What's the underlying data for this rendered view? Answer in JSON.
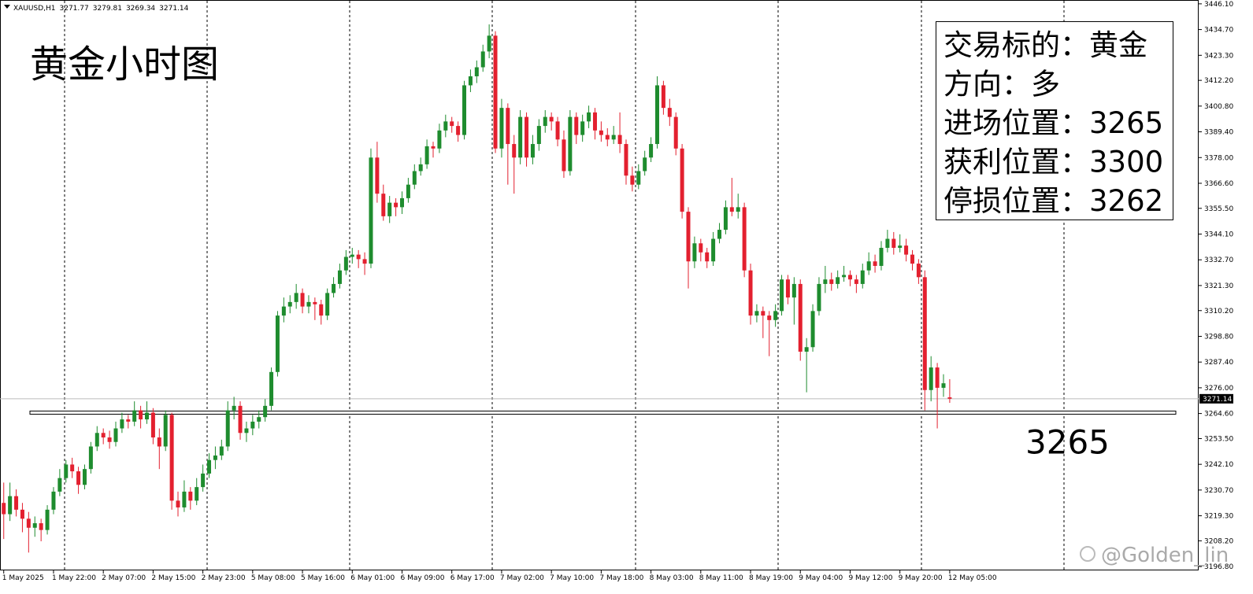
{
  "chart_data": {
    "type": "candlestick",
    "symbol": "XAUUSD,H1",
    "title": "黄金小时图",
    "info_box": [
      "交易标的：黄金",
      "方向：多",
      "进场位置：3265",
      "获利位置：3300",
      "停损位置：3262"
    ],
    "hline": {
      "value": 3265,
      "label": "3265"
    },
    "watermark": "@Golden_lin",
    "up_color": "#1e8c2e",
    "down_color": "#e3202f",
    "xlim": [
      -0.6,
      192
    ],
    "ylim": [
      3195.1,
      3447.8
    ],
    "xticks": [
      {
        "value": 0,
        "label": "1 May 2025"
      },
      {
        "value": 8,
        "label": "1 May 22:00"
      },
      {
        "value": 16,
        "label": "2 May 07:00"
      },
      {
        "value": 24,
        "label": "2 May 15:00"
      },
      {
        "value": 32,
        "label": "2 May 23:00"
      },
      {
        "value": 40,
        "label": "5 May 08:00"
      },
      {
        "value": 48,
        "label": "5 May 16:00"
      },
      {
        "value": 56,
        "label": "6 May 01:00"
      },
      {
        "value": 64,
        "label": "6 May 09:00"
      },
      {
        "value": 72,
        "label": "6 May 17:00"
      },
      {
        "value": 80,
        "label": "7 May 02:00"
      },
      {
        "value": 88,
        "label": "7 May 10:00"
      },
      {
        "value": 96,
        "label": "7 May 18:00"
      },
      {
        "value": 104,
        "label": "8 May 03:00"
      },
      {
        "value": 112,
        "label": "8 May 11:00"
      },
      {
        "value": 120,
        "label": "8 May 19:00"
      },
      {
        "value": 128,
        "label": "9 May 04:00"
      },
      {
        "value": 136,
        "label": "9 May 12:00"
      },
      {
        "value": 144,
        "label": "9 May 20:00"
      },
      {
        "value": 152,
        "label": "12 May 05:00"
      }
    ],
    "yticks": [
      {
        "value": 3446.1,
        "label": "3446.10"
      },
      {
        "value": 3434.7,
        "label": "3434.70"
      },
      {
        "value": 3423.3,
        "label": "3423.30"
      },
      {
        "value": 3412.2,
        "label": "3412.20"
      },
      {
        "value": 3400.8,
        "label": "3400.80"
      },
      {
        "value": 3389.4,
        "label": "3389.40"
      },
      {
        "value": 3378.0,
        "label": "3378.00"
      },
      {
        "value": 3366.6,
        "label": "3366.60"
      },
      {
        "value": 3355.5,
        "label": "3355.50"
      },
      {
        "value": 3344.1,
        "label": "3344.10"
      },
      {
        "value": 3332.7,
        "label": "3332.70"
      },
      {
        "value": 3321.3,
        "label": "3321.30"
      },
      {
        "value": 3310.2,
        "label": "3310.20"
      },
      {
        "value": 3298.8,
        "label": "3298.80"
      },
      {
        "value": 3287.4,
        "label": "3287.40"
      },
      {
        "value": 3276.0,
        "label": "3276.00"
      },
      {
        "value": 3264.6,
        "label": "3264.60"
      },
      {
        "value": 3253.5,
        "label": "3253.50"
      },
      {
        "value": 3242.1,
        "label": "3242.10"
      },
      {
        "value": 3230.7,
        "label": "3230.70"
      },
      {
        "value": 3219.3,
        "label": "3219.30"
      },
      {
        "value": 3208.2,
        "label": "3208.20"
      },
      {
        "value": 3196.8,
        "label": "3196.80"
      }
    ],
    "candles": [
      [
        3225,
        3234,
        3209,
        3220
      ],
      [
        3220,
        3234,
        3217,
        3228
      ],
      [
        3228,
        3231,
        3219,
        3222
      ],
      [
        3222,
        3225,
        3212,
        3218
      ],
      [
        3218,
        3221,
        3203,
        3214
      ],
      [
        3214,
        3219,
        3210,
        3216
      ],
      [
        3216,
        3218,
        3208,
        3213
      ],
      [
        3213,
        3224,
        3211,
        3222
      ],
      [
        3222,
        3232,
        3220,
        3230
      ],
      [
        3230,
        3240,
        3228,
        3236
      ],
      [
        3236,
        3244,
        3234,
        3242
      ],
      [
        3242,
        3245,
        3236,
        3239
      ],
      [
        3239,
        3241,
        3229,
        3233
      ],
      [
        3233,
        3242,
        3231,
        3240
      ],
      [
        3240,
        3252,
        3238,
        3250
      ],
      [
        3250,
        3259,
        3248,
        3256
      ],
      [
        3256,
        3258,
        3251,
        3254
      ],
      [
        3254,
        3257,
        3249,
        3252
      ],
      [
        3252,
        3261,
        3250,
        3258
      ],
      [
        3258,
        3265,
        3256,
        3262
      ],
      [
        3262,
        3264,
        3258,
        3261
      ],
      [
        3261,
        3270,
        3259,
        3266
      ],
      [
        3266,
        3268,
        3258,
        3262
      ],
      [
        3262,
        3270,
        3260,
        3265
      ],
      [
        3265,
        3267,
        3251,
        3254
      ],
      [
        3254,
        3258,
        3240,
        3250
      ],
      [
        3250,
        3266,
        3248,
        3264
      ],
      [
        3264,
        3265,
        3222,
        3226
      ],
      [
        3226,
        3230,
        3219,
        3223
      ],
      [
        3223,
        3235,
        3221,
        3230
      ],
      [
        3230,
        3232,
        3222,
        3226
      ],
      [
        3226,
        3236,
        3224,
        3232
      ],
      [
        3232,
        3242,
        3230,
        3238
      ],
      [
        3238,
        3247,
        3236,
        3244
      ],
      [
        3244,
        3250,
        3240,
        3246
      ],
      [
        3246,
        3253,
        3244,
        3250
      ],
      [
        3250,
        3270,
        3248,
        3266
      ],
      [
        3266,
        3272,
        3262,
        3268
      ],
      [
        3268,
        3270,
        3253,
        3256
      ],
      [
        3256,
        3261,
        3252,
        3258
      ],
      [
        3258,
        3264,
        3255,
        3261
      ],
      [
        3261,
        3266,
        3258,
        3263
      ],
      [
        3263,
        3271,
        3261,
        3268
      ],
      [
        3268,
        3285,
        3266,
        3283
      ],
      [
        3283,
        3310,
        3281,
        3308
      ],
      [
        3308,
        3316,
        3305,
        3312
      ],
      [
        3312,
        3317,
        3309,
        3314
      ],
      [
        3314,
        3322,
        3311,
        3318
      ],
      [
        3318,
        3320,
        3309,
        3312
      ],
      [
        3312,
        3317,
        3309,
        3314
      ],
      [
        3314,
        3316,
        3306,
        3313
      ],
      [
        3313,
        3315,
        3304,
        3308
      ],
      [
        3308,
        3320,
        3306,
        3318
      ],
      [
        3318,
        3325,
        3316,
        3322
      ],
      [
        3322,
        3331,
        3320,
        3328
      ],
      [
        3328,
        3337,
        3326,
        3334
      ],
      [
        3334,
        3338,
        3331,
        3335
      ],
      [
        3335,
        3337,
        3329,
        3333
      ],
      [
        3333,
        3336,
        3326,
        3331
      ],
      [
        3331,
        3382,
        3329,
        3378
      ],
      [
        3378,
        3385,
        3358,
        3362
      ],
      [
        3362,
        3366,
        3350,
        3352
      ],
      [
        3352,
        3361,
        3349,
        3358
      ],
      [
        3358,
        3360,
        3352,
        3356
      ],
      [
        3356,
        3363,
        3353,
        3360
      ],
      [
        3360,
        3369,
        3358,
        3366
      ],
      [
        3366,
        3375,
        3364,
        3372
      ],
      [
        3372,
        3378,
        3370,
        3375
      ],
      [
        3375,
        3386,
        3373,
        3383
      ],
      [
        3383,
        3385,
        3378,
        3382
      ],
      [
        3382,
        3393,
        3380,
        3390
      ],
      [
        3390,
        3397,
        3387,
        3394
      ],
      [
        3394,
        3396,
        3389,
        3392
      ],
      [
        3392,
        3394,
        3385,
        3388
      ],
      [
        3388,
        3412,
        3386,
        3410
      ],
      [
        3410,
        3417,
        3407,
        3414
      ],
      [
        3414,
        3421,
        3411,
        3418
      ],
      [
        3418,
        3428,
        3416,
        3425
      ],
      [
        3425,
        3437,
        3422,
        3432
      ],
      [
        3432,
        3434,
        3380,
        3382
      ],
      [
        3382,
        3404,
        3378,
        3400
      ],
      [
        3400,
        3402,
        3366,
        3384
      ],
      [
        3384,
        3388,
        3362,
        3378
      ],
      [
        3378,
        3399,
        3375,
        3396
      ],
      [
        3396,
        3398,
        3374,
        3378
      ],
      [
        3378,
        3388,
        3375,
        3384
      ],
      [
        3384,
        3395,
        3381,
        3392
      ],
      [
        3392,
        3399,
        3389,
        3396
      ],
      [
        3396,
        3398,
        3390,
        3394
      ],
      [
        3394,
        3396,
        3383,
        3386
      ],
      [
        3386,
        3390,
        3369,
        3372
      ],
      [
        3372,
        3399,
        3370,
        3396
      ],
      [
        3396,
        3398,
        3384,
        3388
      ],
      [
        3388,
        3397,
        3385,
        3394
      ],
      [
        3394,
        3401,
        3391,
        3398
      ],
      [
        3398,
        3400,
        3386,
        3390
      ],
      [
        3390,
        3394,
        3385,
        3388
      ],
      [
        3388,
        3391,
        3383,
        3386
      ],
      [
        3386,
        3392,
        3384,
        3388
      ],
      [
        3388,
        3398,
        3380,
        3384
      ],
      [
        3384,
        3386,
        3366,
        3370
      ],
      [
        3370,
        3374,
        3363,
        3366
      ],
      [
        3366,
        3375,
        3364,
        3372
      ],
      [
        3372,
        3381,
        3370,
        3378
      ],
      [
        3378,
        3387,
        3376,
        3384
      ],
      [
        3384,
        3414,
        3382,
        3410
      ],
      [
        3410,
        3412,
        3397,
        3400
      ],
      [
        3400,
        3404,
        3392,
        3396
      ],
      [
        3396,
        3398,
        3379,
        3382
      ],
      [
        3382,
        3384,
        3351,
        3354
      ],
      [
        3354,
        3356,
        3320,
        3332
      ],
      [
        3332,
        3343,
        3329,
        3340
      ],
      [
        3340,
        3342,
        3332,
        3336
      ],
      [
        3336,
        3338,
        3329,
        3332
      ],
      [
        3332,
        3345,
        3330,
        3342
      ],
      [
        3342,
        3349,
        3340,
        3346
      ],
      [
        3346,
        3359,
        3344,
        3356
      ],
      [
        3356,
        3369,
        3352,
        3354
      ],
      [
        3354,
        3362,
        3351,
        3356
      ],
      [
        3356,
        3358,
        3325,
        3328
      ],
      [
        3328,
        3331,
        3304,
        3308
      ],
      [
        3308,
        3313,
        3305,
        3310
      ],
      [
        3310,
        3312,
        3298,
        3308
      ],
      [
        3308,
        3310,
        3290,
        3306
      ],
      [
        3306,
        3313,
        3303,
        3310
      ],
      [
        3310,
        3326,
        3308,
        3324
      ],
      [
        3324,
        3326,
        3313,
        3316
      ],
      [
        3316,
        3325,
        3304,
        3322
      ],
      [
        3322,
        3324,
        3288,
        3292
      ],
      [
        3292,
        3298,
        3274,
        3294
      ],
      [
        3294,
        3313,
        3292,
        3310
      ],
      [
        3310,
        3325,
        3308,
        3322
      ],
      [
        3322,
        3330,
        3318,
        3324
      ],
      [
        3324,
        3327,
        3319,
        3322
      ],
      [
        3322,
        3328,
        3320,
        3325
      ],
      [
        3325,
        3330,
        3323,
        3326
      ],
      [
        3326,
        3328,
        3321,
        3324
      ],
      [
        3324,
        3326,
        3318,
        3322
      ],
      [
        3322,
        3331,
        3320,
        3328
      ],
      [
        3328,
        3336,
        3326,
        3332
      ],
      [
        3332,
        3335,
        3327,
        3330
      ],
      [
        3330,
        3341,
        3328,
        3338
      ],
      [
        3338,
        3346,
        3336,
        3342
      ],
      [
        3342,
        3345,
        3335,
        3338
      ],
      [
        3338,
        3344,
        3336,
        3339
      ],
      [
        3339,
        3342,
        3332,
        3335
      ],
      [
        3335,
        3337,
        3328,
        3331
      ],
      [
        3331,
        3333,
        3322,
        3325
      ],
      [
        3325,
        3328,
        3266,
        3275
      ],
      [
        3275,
        3290,
        3270,
        3285
      ],
      [
        3285,
        3287,
        3258,
        3276
      ],
      [
        3276,
        3282,
        3272,
        3278
      ],
      [
        3271.77,
        3279.81,
        3269.34,
        3271.14
      ]
    ]
  }
}
